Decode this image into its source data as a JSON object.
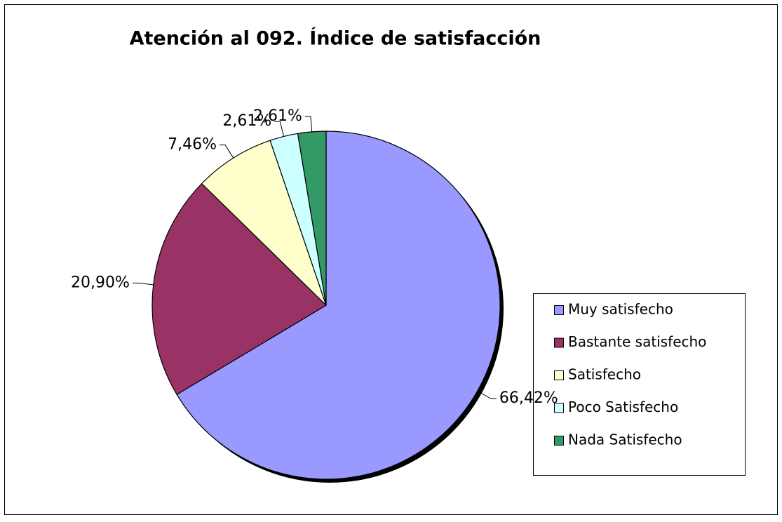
{
  "chart_data": {
    "type": "pie",
    "title": "Atención al 092. Índice de satisfacción",
    "categories": [
      "Muy satisfecho",
      "Bastante satisfecho",
      "Satisfecho",
      "Poco Satisfecho",
      "Nada Satisfecho"
    ],
    "values": [
      66.42,
      20.9,
      7.46,
      2.61,
      2.61
    ],
    "value_labels": [
      "66,42%",
      "20,90%",
      "7,46%",
      "2,61%",
      "2,61%"
    ],
    "colors": [
      "#9999ff",
      "#993366",
      "#ffffcc",
      "#ccffff",
      "#339966"
    ],
    "legend": "right"
  }
}
